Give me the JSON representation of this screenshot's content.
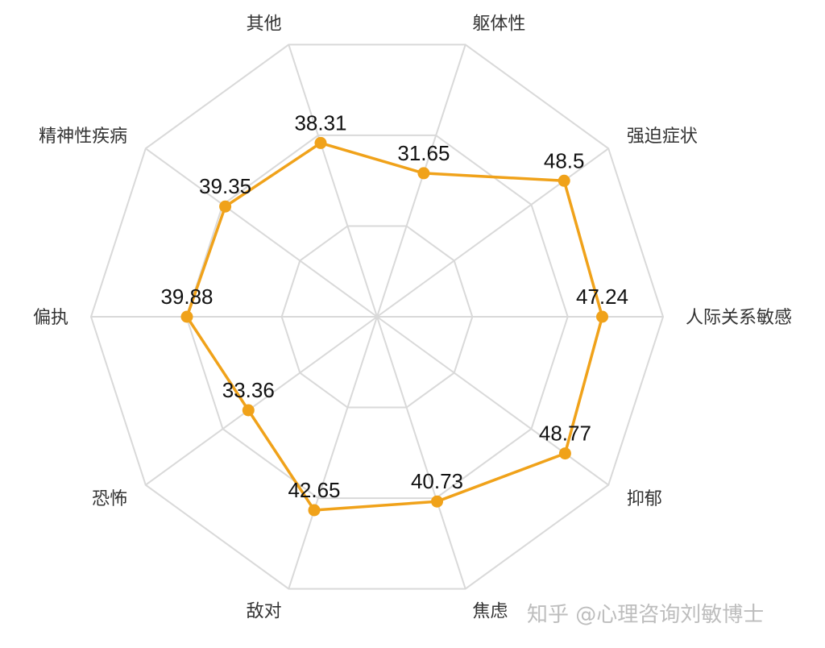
{
  "chart_data": {
    "type": "radar",
    "title": "",
    "axes": [
      "躯体性",
      "强迫症状",
      "人际关系敏感",
      "抑郁",
      "焦虑",
      "敌对",
      "恐怖",
      "偏执",
      "精神性疾病",
      "其他"
    ],
    "values": [
      31.65,
      48.5,
      47.24,
      48.77,
      40.73,
      42.65,
      33.36,
      39.88,
      39.35,
      38.31
    ],
    "value_labels": [
      "31.65",
      "48.5",
      "47.24",
      "48.77",
      "40.73",
      "42.65",
      "33.36",
      "39.88",
      "39.35",
      "38.31"
    ],
    "range": [
      0,
      60
    ],
    "rings": 3,
    "grid": true,
    "legend": "none",
    "colors": {
      "series": "#f0a21a",
      "grid": "#d9d9d9",
      "label": "#333333",
      "value_label": "#111111"
    }
  },
  "watermark": "知乎 @心理咨询刘敏博士"
}
